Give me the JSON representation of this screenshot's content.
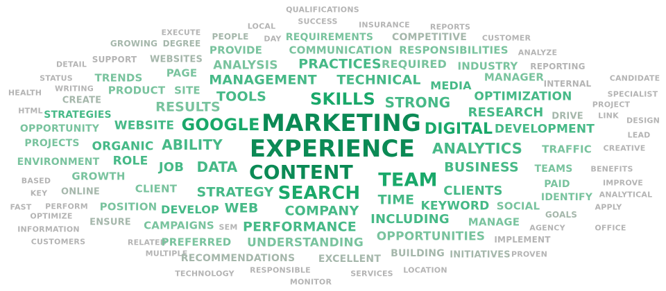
{
  "palette": {
    "t1": "#0b8a55",
    "t2": "#1aa86a",
    "t3": "#46b987",
    "t4": "#79c39e",
    "t5": "#a5b7ab",
    "t6": "#b4b4b4"
  },
  "words": [
    {
      "text": "QUALIFICATIONS",
      "tier": "t6"
    },
    {
      "text": "SUCCESS",
      "tier": "t6"
    },
    {
      "text": "LOCAL",
      "tier": "t6"
    },
    {
      "text": "INSURANCE",
      "tier": "t6"
    },
    {
      "text": "REPORTS",
      "tier": "t6"
    },
    {
      "text": "EXECUTE",
      "tier": "t6"
    },
    {
      "text": "PEOPLE",
      "tier": "t5"
    },
    {
      "text": "DAY",
      "tier": "t6"
    },
    {
      "text": "REQUIREMENTS",
      "tier": "t4"
    },
    {
      "text": "COMPETITIVE",
      "tier": "t5"
    },
    {
      "text": "CUSTOMER",
      "tier": "t6"
    },
    {
      "text": "GROWING",
      "tier": "t5"
    },
    {
      "text": "DEGREE",
      "tier": "t5"
    },
    {
      "text": "PROVIDE",
      "tier": "t4"
    },
    {
      "text": "COMMUNICATION",
      "tier": "t4"
    },
    {
      "text": "RESPONSIBILITIES",
      "tier": "t4"
    },
    {
      "text": "ANALYZE",
      "tier": "t6"
    },
    {
      "text": "DETAIL",
      "tier": "t6"
    },
    {
      "text": "SUPPORT",
      "tier": "t6"
    },
    {
      "text": "WEBSITES",
      "tier": "t5"
    },
    {
      "text": "ANALYSIS",
      "tier": "t4"
    },
    {
      "text": "PRACTICES",
      "tier": "t3"
    },
    {
      "text": "REQUIRED",
      "tier": "t4"
    },
    {
      "text": "INDUSTRY",
      "tier": "t4"
    },
    {
      "text": "REPORTING",
      "tier": "t6"
    },
    {
      "text": "STATUS",
      "tier": "t6"
    },
    {
      "text": "TRENDS",
      "tier": "t4"
    },
    {
      "text": "PAGE",
      "tier": "t4"
    },
    {
      "text": "MANAGEMENT",
      "tier": "t3"
    },
    {
      "text": "TECHNICAL",
      "tier": "t3"
    },
    {
      "text": "MANAGER",
      "tier": "t4"
    },
    {
      "text": "CANDIDATE",
      "tier": "t6"
    },
    {
      "text": "HEALTH",
      "tier": "t6"
    },
    {
      "text": "WRITING",
      "tier": "t6"
    },
    {
      "text": "PRODUCT",
      "tier": "t4"
    },
    {
      "text": "SITE",
      "tier": "t4"
    },
    {
      "text": "TOOLS",
      "tier": "t3"
    },
    {
      "text": "SKILLS",
      "tier": "t2"
    },
    {
      "text": "MEDIA",
      "tier": "t3"
    },
    {
      "text": "INTERNAL",
      "tier": "t6"
    },
    {
      "text": "OPTIMIZATION",
      "tier": "t3"
    },
    {
      "text": "SPECIALIST",
      "tier": "t6"
    },
    {
      "text": "CREATE",
      "tier": "t5"
    },
    {
      "text": "STRONG",
      "tier": "t3"
    },
    {
      "text": "PROJECT",
      "tier": "t6"
    },
    {
      "text": "HTML",
      "tier": "t6"
    },
    {
      "text": "STRATEGIES",
      "tier": "t3"
    },
    {
      "text": "RESULTS",
      "tier": "t4"
    },
    {
      "text": "RESEARCH",
      "tier": "t3"
    },
    {
      "text": "DRIVE",
      "tier": "t5"
    },
    {
      "text": "LINK",
      "tier": "t6"
    },
    {
      "text": "DESIGN",
      "tier": "t6"
    },
    {
      "text": "MARKETING",
      "tier": "t1"
    },
    {
      "text": "OPPORTUNITY",
      "tier": "t4"
    },
    {
      "text": "WEBSITE",
      "tier": "t3"
    },
    {
      "text": "GOOGLE",
      "tier": "t2"
    },
    {
      "text": "DIGITAL",
      "tier": "t2"
    },
    {
      "text": "DEVELOPMENT",
      "tier": "t3"
    },
    {
      "text": "LEAD",
      "tier": "t6"
    },
    {
      "text": "PROJECTS",
      "tier": "t4"
    },
    {
      "text": "ORGANIC",
      "tier": "t3"
    },
    {
      "text": "ABILITY",
      "tier": "t3"
    },
    {
      "text": "EXPERIENCE",
      "tier": "t1"
    },
    {
      "text": "ANALYTICS",
      "tier": "t3"
    },
    {
      "text": "TRAFFIC",
      "tier": "t4"
    },
    {
      "text": "CREATIVE",
      "tier": "t6"
    },
    {
      "text": "ENVIRONMENT",
      "tier": "t4"
    },
    {
      "text": "ROLE",
      "tier": "t3"
    },
    {
      "text": "JOB",
      "tier": "t3"
    },
    {
      "text": "DATA",
      "tier": "t3"
    },
    {
      "text": "CONTENT",
      "tier": "t1"
    },
    {
      "text": "BUSINESS",
      "tier": "t3"
    },
    {
      "text": "TEAMS",
      "tier": "t4"
    },
    {
      "text": "BENEFITS",
      "tier": "t6"
    },
    {
      "text": "GROWTH",
      "tier": "t4"
    },
    {
      "text": "TEAM",
      "tier": "t2"
    },
    {
      "text": "BASED",
      "tier": "t6"
    },
    {
      "text": "PAID",
      "tier": "t4"
    },
    {
      "text": "IMPROVE",
      "tier": "t6"
    },
    {
      "text": "KEY",
      "tier": "t6"
    },
    {
      "text": "ONLINE",
      "tier": "t5"
    },
    {
      "text": "CLIENT",
      "tier": "t4"
    },
    {
      "text": "STRATEGY",
      "tier": "t3"
    },
    {
      "text": "SEARCH",
      "tier": "t2"
    },
    {
      "text": "CLIENTS",
      "tier": "t3"
    },
    {
      "text": "IDENTIFY",
      "tier": "t4"
    },
    {
      "text": "ANALYTICAL",
      "tier": "t6"
    },
    {
      "text": "FAST",
      "tier": "t6"
    },
    {
      "text": "PERFORM",
      "tier": "t6"
    },
    {
      "text": "POSITION",
      "tier": "t4"
    },
    {
      "text": "DEVELOP",
      "tier": "t3"
    },
    {
      "text": "WEB",
      "tier": "t3"
    },
    {
      "text": "TIME",
      "tier": "t3"
    },
    {
      "text": "KEYWORD",
      "tier": "t3"
    },
    {
      "text": "SOCIAL",
      "tier": "t4"
    },
    {
      "text": "APPLY",
      "tier": "t6"
    },
    {
      "text": "OPTIMIZE",
      "tier": "t6"
    },
    {
      "text": "COMPANY",
      "tier": "t3"
    },
    {
      "text": "GOALS",
      "tier": "t5"
    },
    {
      "text": "ENSURE",
      "tier": "t5"
    },
    {
      "text": "INCLUDING",
      "tier": "t3"
    },
    {
      "text": "MANAGE",
      "tier": "t4"
    },
    {
      "text": "INFORMATION",
      "tier": "t6"
    },
    {
      "text": "CAMPAIGNS",
      "tier": "t4"
    },
    {
      "text": "SEM",
      "tier": "t6"
    },
    {
      "text": "PERFORMANCE",
      "tier": "t3"
    },
    {
      "text": "AGENCY",
      "tier": "t6"
    },
    {
      "text": "OFFICE",
      "tier": "t6"
    },
    {
      "text": "OPPORTUNITIES",
      "tier": "t4"
    },
    {
      "text": "CUSTOMERS",
      "tier": "t6"
    },
    {
      "text": "RELATED",
      "tier": "t6"
    },
    {
      "text": "PREFERRED",
      "tier": "t4"
    },
    {
      "text": "UNDERSTANDING",
      "tier": "t4"
    },
    {
      "text": "IMPLEMENT",
      "tier": "t6"
    },
    {
      "text": "MULTIPLE",
      "tier": "t6"
    },
    {
      "text": "BUILDING",
      "tier": "t5"
    },
    {
      "text": "RECOMMENDATIONS",
      "tier": "t5"
    },
    {
      "text": "EXCELLENT",
      "tier": "t5"
    },
    {
      "text": "INITIATIVES",
      "tier": "t5"
    },
    {
      "text": "PROVEN",
      "tier": "t6"
    },
    {
      "text": "RESPONSIBLE",
      "tier": "t6"
    },
    {
      "text": "LOCATION",
      "tier": "t6"
    },
    {
      "text": "TECHNOLOGY",
      "tier": "t6"
    },
    {
      "text": "SERVICES",
      "tier": "t6"
    },
    {
      "text": "MONITOR",
      "tier": "t6"
    }
  ]
}
